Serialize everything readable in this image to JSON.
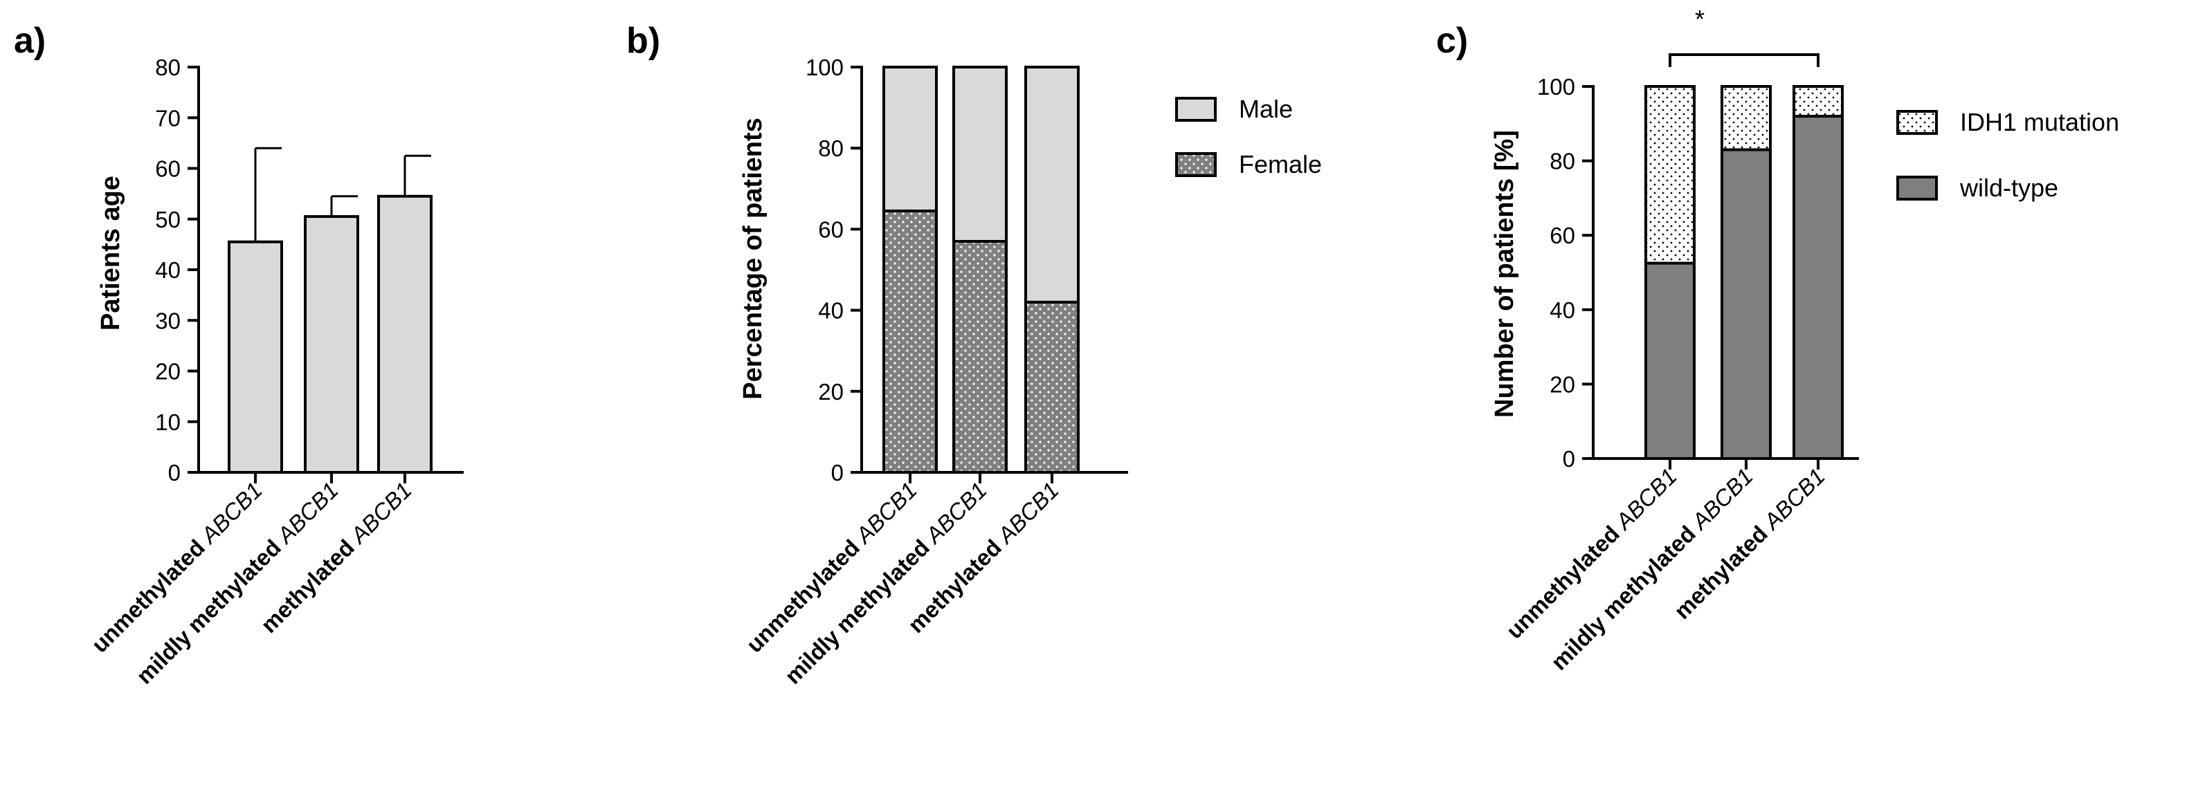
{
  "chart_data": [
    {
      "panel": "a)",
      "type": "bar",
      "title": "",
      "xlabel": "",
      "ylabel": "Patients age",
      "ylim": [
        0,
        80
      ],
      "yticks": [
        0,
        10,
        20,
        30,
        40,
        50,
        60,
        70,
        80
      ],
      "grid": false,
      "categories": [
        {
          "bold": "unmethylated ",
          "italic": "ABCB1"
        },
        {
          "bold": "mildly methylated ",
          "italic": "ABCB1"
        },
        {
          "bold": "methylated ",
          "italic": "ABCB1"
        }
      ],
      "values": [
        45.5,
        50.5,
        54.5
      ],
      "error_upper": [
        64,
        54.5,
        62.5
      ],
      "bar_color": "#d9d9d9"
    },
    {
      "panel": "b)",
      "type": "bar",
      "stacked": true,
      "title": "",
      "xlabel": "",
      "ylabel": "Percentage of patients",
      "ylim": [
        0,
        100
      ],
      "yticks": [
        0,
        20,
        40,
        60,
        80,
        100
      ],
      "grid": false,
      "categories": [
        {
          "bold": "unmethylated ",
          "italic": "ABCB1"
        },
        {
          "bold": "mildly methylated ",
          "italic": "ABCB1"
        },
        {
          "bold": "methylated ",
          "italic": "ABCB1"
        }
      ],
      "series": [
        {
          "name": "Female",
          "values": [
            64.5,
            57,
            42
          ],
          "color": "#808080",
          "pattern": "dots-white"
        },
        {
          "name": "Male",
          "values": [
            35.5,
            43,
            58
          ],
          "color": "#d9d9d9",
          "pattern": "none"
        }
      ],
      "legend": {
        "position": "right",
        "order": [
          "Male",
          "Female"
        ]
      }
    },
    {
      "panel": "c)",
      "type": "bar",
      "stacked": true,
      "title": "",
      "xlabel": "",
      "ylabel": "Number of patients [%]",
      "ylim": [
        0,
        100
      ],
      "yticks": [
        0,
        20,
        40,
        60,
        80,
        100
      ],
      "grid": false,
      "categories": [
        {
          "bold": "unmethylated ",
          "italic": "ABCB1"
        },
        {
          "bold": "mildly methylated ",
          "italic": "ABCB1"
        },
        {
          "bold": "methylated ",
          "italic": "ABCB1"
        }
      ],
      "series": [
        {
          "name": "wild-type",
          "values": [
            52.5,
            83,
            92
          ],
          "color": "#7f7f7f",
          "pattern": "none"
        },
        {
          "name": "IDH1 mutation",
          "values": [
            47.5,
            17,
            8
          ],
          "color": "#ffffff",
          "pattern": "dots-black"
        }
      ],
      "legend": {
        "position": "right",
        "order": [
          "IDH1 mutation",
          "wild-type"
        ]
      },
      "annotation": {
        "text": "*",
        "from_category": 0,
        "to_category": 2
      }
    }
  ]
}
